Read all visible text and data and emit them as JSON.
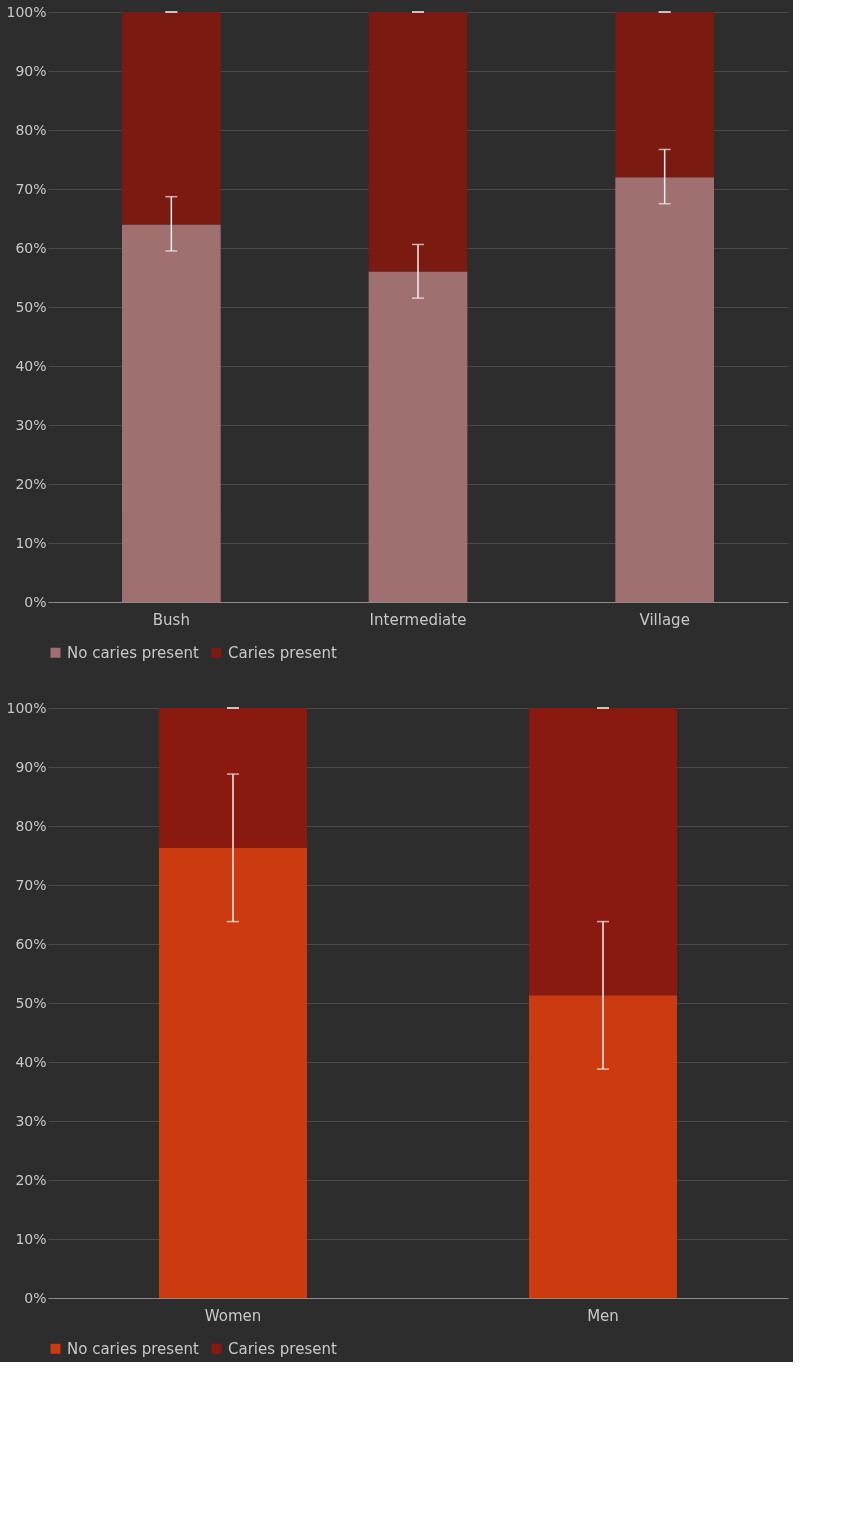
{
  "chart_data": [
    {
      "type": "bar",
      "stacked": true,
      "categories": [
        "Bush",
        "Intermediate",
        "Village"
      ],
      "series": [
        {
          "name": "No caries present",
          "color": "#a07070",
          "values": [
            64,
            56,
            72
          ],
          "errors": [
            [
              59.5,
              68.7
            ],
            [
              51.5,
              60.6
            ],
            [
              67.5,
              76.7
            ]
          ]
        },
        {
          "name": "Caries present",
          "color": "#7a1a10",
          "values": [
            36,
            44,
            28
          ],
          "errors": [
            [
              100,
              100
            ],
            [
              100,
              100
            ],
            [
              100,
              100
            ]
          ]
        }
      ],
      "ylim": [
        0,
        100
      ],
      "yticks": [
        {
          "value": 0,
          "label": "0%"
        },
        {
          "value": 10,
          "label": "10%"
        },
        {
          "value": 20,
          "label": "20%"
        },
        {
          "value": 30,
          "label": "30%"
        },
        {
          "value": 40,
          "label": "40%"
        },
        {
          "value": 50,
          "label": "50%"
        },
        {
          "value": 60,
          "label": "60%"
        },
        {
          "value": 70,
          "label": "70%"
        },
        {
          "value": 80,
          "label": "80%"
        },
        {
          "value": 90,
          "label": "90%"
        },
        {
          "value": 100,
          "label": "100%"
        }
      ],
      "grid": "y",
      "legend": "bottom"
    },
    {
      "type": "bar",
      "stacked": true,
      "categories": [
        "Women",
        "Men"
      ],
      "series": [
        {
          "name": "No caries present",
          "color": "#cc3a10",
          "values": [
            76.3,
            51.3
          ],
          "errors": [
            [
              63.8,
              88.8
            ],
            [
              38.8,
              63.8
            ]
          ]
        },
        {
          "name": "Caries present",
          "color": "#8a1a10",
          "values": [
            23.7,
            48.7
          ],
          "errors": [
            [
              100,
              100
            ],
            [
              100,
              100
            ]
          ]
        }
      ],
      "ylim": [
        0,
        100
      ],
      "yticks": [
        {
          "value": 0,
          "label": "0%"
        },
        {
          "value": 10,
          "label": "10%"
        },
        {
          "value": 20,
          "label": "20%"
        },
        {
          "value": 30,
          "label": "30%"
        },
        {
          "value": 40,
          "label": "40%"
        },
        {
          "value": 50,
          "label": "50%"
        },
        {
          "value": 60,
          "label": "60%"
        },
        {
          "value": 70,
          "label": "70%"
        },
        {
          "value": 80,
          "label": "80%"
        },
        {
          "value": 90,
          "label": "90%"
        },
        {
          "value": 100,
          "label": "100%"
        }
      ],
      "grid": "y",
      "legend": "bottom"
    }
  ]
}
